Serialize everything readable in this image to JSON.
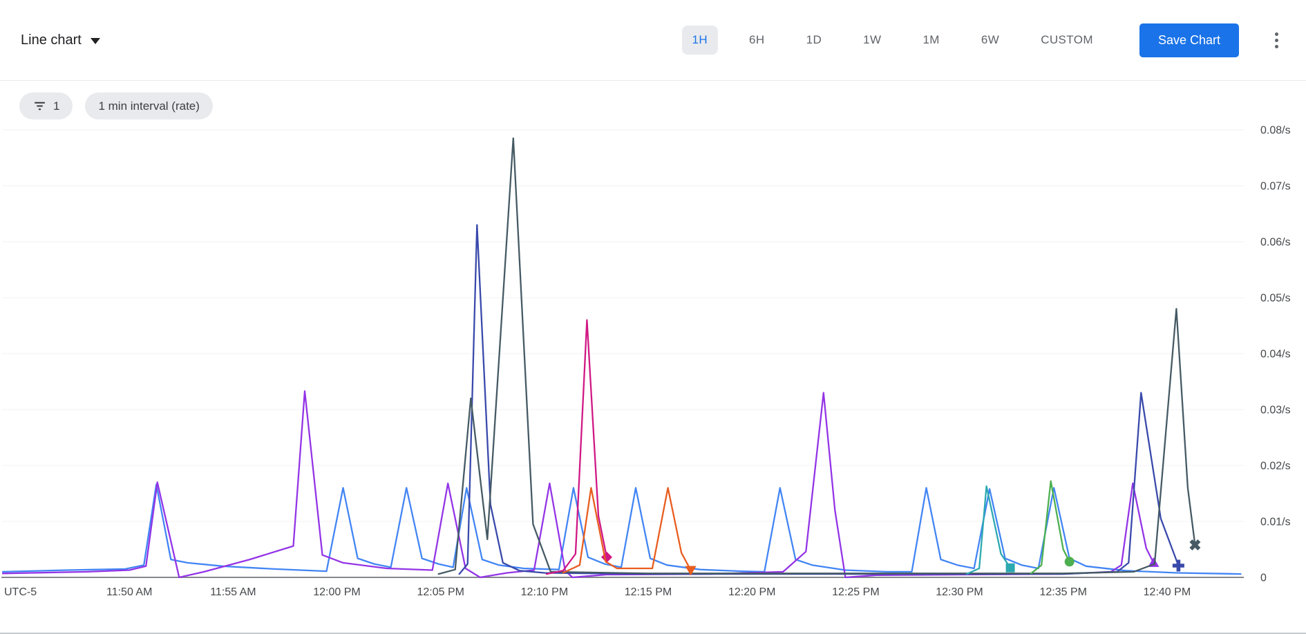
{
  "header": {
    "chart_type_label": "Line chart",
    "time_ranges": [
      "1H",
      "6H",
      "1D",
      "1W",
      "1M",
      "6W",
      "CUSTOM"
    ],
    "selected_range": "1H",
    "save_button_label": "Save Chart"
  },
  "filters": {
    "filter_count": "1",
    "interval_chip_label": "1 min interval (rate)"
  },
  "chart_data": {
    "type": "line",
    "legend_position": "none",
    "grid": "horizontal",
    "x_axis": {
      "timezone_label": "UTC-5",
      "domain_minutes": [
        -1.1,
        58.7
      ],
      "ticks": [
        {
          "minute": 5,
          "label": "11:50 AM"
        },
        {
          "minute": 10,
          "label": "11:55 AM"
        },
        {
          "minute": 15,
          "label": "12:00 PM"
        },
        {
          "minute": 20,
          "label": "12:05 PM"
        },
        {
          "minute": 25,
          "label": "12:10 PM"
        },
        {
          "minute": 30,
          "label": "12:15 PM"
        },
        {
          "minute": 35,
          "label": "12:20 PM"
        },
        {
          "minute": 40,
          "label": "12:25 PM"
        },
        {
          "minute": 45,
          "label": "12:30 PM"
        },
        {
          "minute": 50,
          "label": "12:35 PM"
        },
        {
          "minute": 55,
          "label": "12:40 PM"
        }
      ]
    },
    "y_axis": {
      "unit": "/s",
      "max": 0.08,
      "ticks": [
        {
          "value": 0,
          "label": "0"
        },
        {
          "value": 0.01,
          "label": "0.01/s"
        },
        {
          "value": 0.02,
          "label": "0.02/s"
        },
        {
          "value": 0.03,
          "label": "0.03/s"
        },
        {
          "value": 0.04,
          "label": "0.04/s"
        },
        {
          "value": 0.05,
          "label": "0.05/s"
        },
        {
          "value": 0.06,
          "label": "0.06/s"
        },
        {
          "value": 0.07,
          "label": "0.07/s"
        },
        {
          "value": 0.08,
          "label": "0.08/s"
        }
      ]
    },
    "series": [
      {
        "name": "blue",
        "color": "#4285F4",
        "marker": null,
        "points": [
          [
            -1.1,
            0.001
          ],
          [
            2.0,
            0.0013
          ],
          [
            4.8,
            0.0015
          ],
          [
            5.7,
            0.0022
          ],
          [
            6.3,
            0.0166
          ],
          [
            7.0,
            0.0032
          ],
          [
            7.8,
            0.0026
          ],
          [
            9.5,
            0.002
          ],
          [
            12.0,
            0.0015
          ],
          [
            14.5,
            0.0011
          ],
          [
            15.3,
            0.016
          ],
          [
            16.0,
            0.0034
          ],
          [
            16.8,
            0.0024
          ],
          [
            17.6,
            0.0018
          ],
          [
            18.35,
            0.016
          ],
          [
            19.1,
            0.0034
          ],
          [
            19.9,
            0.0024
          ],
          [
            20.6,
            0.0018
          ],
          [
            21.25,
            0.016
          ],
          [
            22.0,
            0.0032
          ],
          [
            22.8,
            0.0022
          ],
          [
            24.0,
            0.0016
          ],
          [
            25.7,
            0.0014
          ],
          [
            26.4,
            0.016
          ],
          [
            27.1,
            0.0036
          ],
          [
            27.9,
            0.0024
          ],
          [
            28.7,
            0.0018
          ],
          [
            29.4,
            0.016
          ],
          [
            30.1,
            0.0034
          ],
          [
            30.9,
            0.0022
          ],
          [
            32.5,
            0.0014
          ],
          [
            34.5,
            0.0011
          ],
          [
            35.6,
            0.001
          ],
          [
            36.35,
            0.016
          ],
          [
            37.1,
            0.0032
          ],
          [
            37.9,
            0.0022
          ],
          [
            39.5,
            0.0013
          ],
          [
            41.5,
            0.001
          ],
          [
            42.7,
            0.001
          ],
          [
            43.4,
            0.016
          ],
          [
            44.1,
            0.0032
          ],
          [
            44.9,
            0.0022
          ],
          [
            45.7,
            0.0016
          ],
          [
            46.45,
            0.0158
          ],
          [
            47.2,
            0.0034
          ],
          [
            48.0,
            0.0022
          ],
          [
            48.8,
            0.0016
          ],
          [
            49.55,
            0.016
          ],
          [
            50.3,
            0.0034
          ],
          [
            51.1,
            0.002
          ],
          [
            53.0,
            0.0012
          ],
          [
            55.5,
            0.0008
          ],
          [
            58.55,
            0.0006
          ]
        ]
      },
      {
        "name": "purple",
        "color": "#9334E6",
        "marker": "triangle-up",
        "points": [
          [
            -1.1,
            0.0007
          ],
          [
            3.0,
            0.001
          ],
          [
            5.0,
            0.0013
          ],
          [
            5.8,
            0.002
          ],
          [
            6.35,
            0.017
          ],
          [
            7.4,
            0.0
          ],
          [
            8.6,
            0.001
          ],
          [
            10.8,
            0.0032
          ],
          [
            12.9,
            0.0056
          ],
          [
            13.45,
            0.0333
          ],
          [
            14.3,
            0.004
          ],
          [
            15.3,
            0.0026
          ],
          [
            17.4,
            0.0016
          ],
          [
            19.6,
            0.0013
          ],
          [
            20.35,
            0.0168
          ],
          [
            21.2,
            0.0016
          ],
          [
            21.9,
            0.0
          ],
          [
            23.2,
            0.0008
          ],
          [
            24.5,
            0.0013
          ],
          [
            25.25,
            0.0168
          ],
          [
            26.0,
            0.0012
          ],
          [
            26.35,
            0.0
          ],
          [
            28.0,
            0.0005
          ],
          [
            33.0,
            0.0006
          ],
          [
            36.5,
            0.001
          ],
          [
            37.6,
            0.0046
          ],
          [
            38.45,
            0.033
          ],
          [
            39.0,
            0.012
          ],
          [
            39.5,
            0.0
          ],
          [
            41.0,
            0.0004
          ],
          [
            50.0,
            0.0006
          ],
          [
            52.3,
            0.001
          ],
          [
            52.8,
            0.0022
          ],
          [
            53.35,
            0.0168
          ],
          [
            54.0,
            0.0052
          ],
          [
            54.35,
            0.0026
          ]
        ]
      },
      {
        "name": "indigo",
        "color": "#3949AB",
        "marker": "plus",
        "points": [
          [
            20.9,
            0.0006
          ],
          [
            21.3,
            0.0024
          ],
          [
            21.75,
            0.063
          ],
          [
            22.4,
            0.013
          ],
          [
            23.0,
            0.0026
          ],
          [
            23.8,
            0.0012
          ],
          [
            25.0,
            0.0008
          ],
          [
            30.0,
            0.0006
          ],
          [
            50.0,
            0.0006
          ],
          [
            52.6,
            0.001
          ],
          [
            53.15,
            0.0026
          ],
          [
            53.75,
            0.033
          ],
          [
            54.7,
            0.0105
          ],
          [
            55.55,
            0.0021
          ]
        ]
      },
      {
        "name": "slate",
        "color": "#455A64",
        "marker": "x",
        "points": [
          [
            19.9,
            0.0006
          ],
          [
            20.7,
            0.0014
          ],
          [
            21.45,
            0.032
          ],
          [
            22.25,
            0.0068
          ],
          [
            23.5,
            0.0785
          ],
          [
            24.45,
            0.0095
          ],
          [
            25.3,
            0.001
          ],
          [
            30.0,
            0.0007
          ],
          [
            50.0,
            0.0007
          ],
          [
            53.4,
            0.001
          ],
          [
            54.4,
            0.0024
          ],
          [
            55.45,
            0.048
          ],
          [
            56.0,
            0.016
          ],
          [
            56.35,
            0.0058
          ]
        ]
      },
      {
        "name": "magenta",
        "color": "#D01884",
        "marker": "diamond",
        "points": [
          [
            25.1,
            0.0006
          ],
          [
            25.9,
            0.0012
          ],
          [
            26.5,
            0.0042
          ],
          [
            27.05,
            0.046
          ],
          [
            27.6,
            0.011
          ],
          [
            28.0,
            0.0036
          ]
        ]
      },
      {
        "name": "orange",
        "color": "#E85D1F",
        "marker": "triangle-down",
        "points": [
          [
            25.9,
            0.0008
          ],
          [
            26.7,
            0.0022
          ],
          [
            27.25,
            0.016
          ],
          [
            27.95,
            0.0028
          ],
          [
            28.5,
            0.0016
          ],
          [
            30.2,
            0.0016
          ],
          [
            30.95,
            0.016
          ],
          [
            31.6,
            0.0044
          ],
          [
            32.05,
            0.0013
          ]
        ]
      },
      {
        "name": "teal",
        "color": "#2CA8B0",
        "marker": "square",
        "points": [
          [
            45.35,
            0.0006
          ],
          [
            45.95,
            0.0016
          ],
          [
            46.3,
            0.0163
          ],
          [
            47.0,
            0.0042
          ],
          [
            47.45,
            0.0017
          ]
        ]
      },
      {
        "name": "green",
        "color": "#4CAF50",
        "marker": "circle",
        "points": [
          [
            48.45,
            0.0007
          ],
          [
            48.95,
            0.0022
          ],
          [
            49.4,
            0.0172
          ],
          [
            50.0,
            0.005
          ],
          [
            50.3,
            0.0028
          ]
        ]
      }
    ]
  }
}
